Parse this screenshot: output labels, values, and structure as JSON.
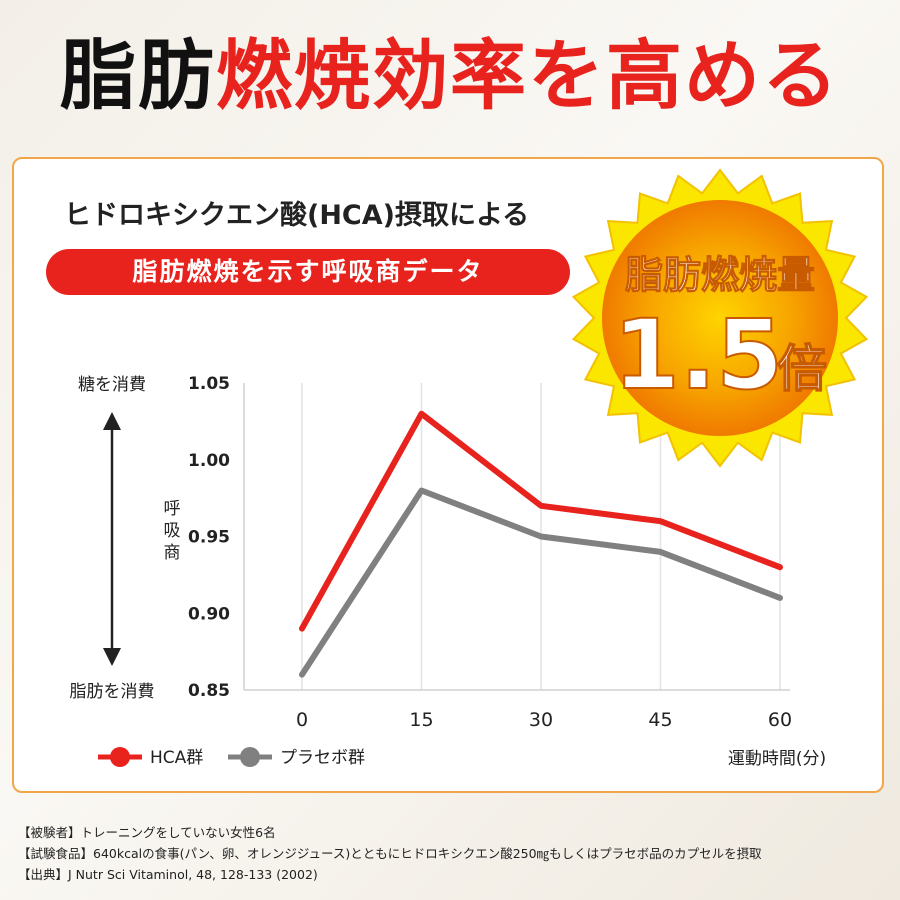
{
  "header": {
    "title_black": "脂肪",
    "title_red": "燃焼効率",
    "title_rest": "を高める"
  },
  "card": {
    "title": "ヒドロキシクエン酸(HCA)摂取による",
    "subtitle": "脂肪燃焼を示す呼吸商データ"
  },
  "badge": {
    "line1": "脂肪燃焼量",
    "value": "1.5",
    "unit": "倍",
    "colors": {
      "ring": "#f9e000",
      "core": "#f08a00",
      "text": "#ffffff"
    }
  },
  "axis_notes": {
    "top": "糖を消費",
    "bottom": "脂肪を消費"
  },
  "chart_data": {
    "type": "line",
    "ylabel": "呼吸商",
    "xlabel": "運動時間(分)",
    "x": [
      0,
      15,
      30,
      45,
      60
    ],
    "ylim": [
      0.85,
      1.05
    ],
    "yticks": [
      "0.85",
      "0.90",
      "0.95",
      "1.00",
      "1.05"
    ],
    "xticks": [
      "0",
      "15",
      "30",
      "45",
      "60"
    ],
    "grid": "vertical",
    "legend": "bottom-left",
    "series": [
      {
        "name": "HCA群",
        "values": [
          0.89,
          1.03,
          0.97,
          0.96,
          0.93
        ],
        "color": "#e8231e"
      },
      {
        "name": "プラセボ群",
        "values": [
          0.86,
          0.98,
          0.95,
          0.94,
          0.91
        ],
        "color": "#808080"
      }
    ]
  },
  "footnotes": [
    "【被験者】トレーニングをしていない女性6名",
    "【試験食品】640kcalの食事(パン、卵、オレンジジュース)とともにヒドロキシクエン酸250㎎もしくはプラセボ品のカプセルを摂取",
    "【出典】J Nutr Sci Vitaminol, 48, 128-133 (2002)"
  ]
}
